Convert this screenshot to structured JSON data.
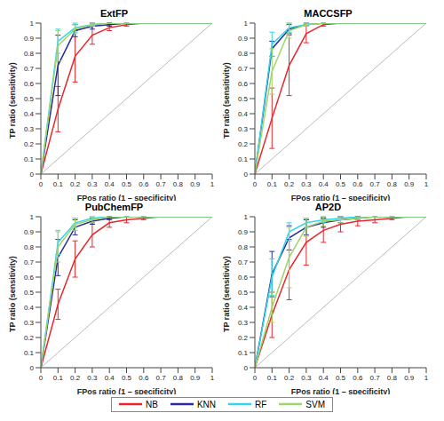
{
  "chart_data": [
    {
      "type": "line",
      "title": "ExtFP",
      "x_label": "FPos ratio (1 – specificity)",
      "y_label": "TP ratio (sensitivity)",
      "x": [
        0,
        0.1,
        0.2,
        0.3,
        0.4,
        0.5,
        0.6,
        0.7,
        0.8,
        0.9,
        1
      ],
      "xlim": [
        0,
        1
      ],
      "xticks": [
        0,
        0.1,
        0.2,
        0.3,
        0.4,
        0.5,
        0.6,
        0.7,
        0.8,
        0.9,
        1
      ],
      "ylim": [
        0,
        1
      ],
      "yticks": [
        0,
        0.1,
        0.2,
        0.3,
        0.4,
        0.5,
        0.6,
        0.7,
        0.8,
        0.9,
        1
      ],
      "legend": "bottom",
      "series": [
        {
          "name": "NB",
          "color": "#e8262b",
          "values": [
            0,
            0.43,
            0.78,
            0.92,
            0.97,
            0.99,
            1,
            1,
            1,
            1,
            1
          ],
          "errors": [
            0,
            0.15,
            0.17,
            0.06,
            0.02,
            0.01,
            0,
            0,
            0,
            0,
            0
          ]
        },
        {
          "name": "KNN",
          "color": "#2a2a9c",
          "values": [
            0,
            0.72,
            0.95,
            0.98,
            0.99,
            1,
            1,
            1,
            1,
            1,
            1
          ],
          "errors": [
            0,
            0.2,
            0.04,
            0.02,
            0.01,
            0,
            0,
            0,
            0,
            0,
            0
          ]
        },
        {
          "name": "RF",
          "color": "#33d6e8",
          "values": [
            0,
            0.88,
            0.97,
            0.99,
            1,
            1,
            1,
            1,
            1,
            1,
            1
          ],
          "errors": [
            0,
            0.08,
            0.03,
            0.01,
            0,
            0,
            0,
            0,
            0,
            0,
            0
          ]
        },
        {
          "name": "SVM",
          "color": "#9ed46a",
          "values": [
            0,
            0.85,
            0.96,
            0.99,
            1,
            1,
            1,
            1,
            1,
            1,
            1
          ],
          "errors": [
            0,
            0.1,
            0.03,
            0.01,
            0,
            0,
            0,
            0,
            0,
            0,
            0
          ]
        }
      ]
    },
    {
      "type": "line",
      "title": "MACCSFP",
      "x_label": "FPos ratio (1 – specificity)",
      "y_label": "TP ratio (sensitivity)",
      "x": [
        0,
        0.1,
        0.2,
        0.3,
        0.4,
        0.5,
        0.6,
        0.7,
        0.8,
        0.9,
        1
      ],
      "xlim": [
        0,
        1
      ],
      "xticks": [
        0,
        0.1,
        0.2,
        0.3,
        0.4,
        0.5,
        0.6,
        0.7,
        0.8,
        0.9,
        1
      ],
      "ylim": [
        0,
        1
      ],
      "yticks": [
        0,
        0.1,
        0.2,
        0.3,
        0.4,
        0.5,
        0.6,
        0.7,
        0.8,
        0.9,
        1
      ],
      "legend": "bottom",
      "series": [
        {
          "name": "NB",
          "color": "#e8262b",
          "values": [
            0,
            0.37,
            0.72,
            0.93,
            0.99,
            1,
            1,
            1,
            1,
            1,
            1
          ],
          "errors": [
            0,
            0.2,
            0.2,
            0.06,
            0.01,
            0,
            0,
            0,
            0,
            0,
            0
          ]
        },
        {
          "name": "KNN",
          "color": "#2a2a9c",
          "values": [
            0,
            0.83,
            0.96,
            0.99,
            1,
            1,
            1,
            1,
            1,
            1,
            1
          ],
          "errors": [
            0,
            0.05,
            0.03,
            0.01,
            0,
            0,
            0,
            0,
            0,
            0,
            0
          ]
        },
        {
          "name": "RF",
          "color": "#33d6e8",
          "values": [
            0,
            0.86,
            0.97,
            0.99,
            1,
            1,
            1,
            1,
            1,
            1,
            1
          ],
          "errors": [
            0,
            0.08,
            0.03,
            0.01,
            0,
            0,
            0,
            0,
            0,
            0,
            0
          ]
        },
        {
          "name": "SVM",
          "color": "#9ed46a",
          "values": [
            0,
            0.68,
            0.95,
            0.99,
            1,
            1,
            1,
            1,
            1,
            1,
            1
          ],
          "errors": [
            0,
            0.15,
            0.05,
            0.01,
            0,
            0,
            0,
            0,
            0,
            0,
            0
          ]
        }
      ]
    },
    {
      "type": "line",
      "title": "PubChemFP",
      "x_label": "FPos ratio (1 – specificity)",
      "y_label": "TP ratio (sensitivity)",
      "x": [
        0,
        0.1,
        0.2,
        0.3,
        0.4,
        0.5,
        0.6,
        0.7,
        0.8,
        0.9,
        1
      ],
      "xlim": [
        0,
        1
      ],
      "xticks": [
        0,
        0.1,
        0.2,
        0.3,
        0.4,
        0.5,
        0.6,
        0.7,
        0.8,
        0.9,
        1
      ],
      "ylim": [
        0,
        1
      ],
      "yticks": [
        0,
        0.1,
        0.2,
        0.3,
        0.4,
        0.5,
        0.6,
        0.7,
        0.8,
        0.9,
        1
      ],
      "legend": "bottom",
      "series": [
        {
          "name": "NB",
          "color": "#e8262b",
          "values": [
            0,
            0.42,
            0.72,
            0.88,
            0.96,
            0.98,
            0.99,
            1,
            1,
            1,
            1
          ],
          "errors": [
            0,
            0.1,
            0.12,
            0.08,
            0.03,
            0.02,
            0.01,
            0,
            0,
            0,
            0
          ]
        },
        {
          "name": "KNN",
          "color": "#2a2a9c",
          "values": [
            0,
            0.73,
            0.93,
            0.97,
            0.99,
            1,
            1,
            1,
            1,
            1,
            1
          ],
          "errors": [
            0,
            0.12,
            0.05,
            0.02,
            0.01,
            0,
            0,
            0,
            0,
            0,
            0
          ]
        },
        {
          "name": "RF",
          "color": "#33d6e8",
          "values": [
            0,
            0.83,
            0.96,
            0.99,
            1,
            1,
            1,
            1,
            1,
            1,
            1
          ],
          "errors": [
            0,
            0.08,
            0.03,
            0.01,
            0,
            0,
            0,
            0,
            0,
            0,
            0
          ]
        },
        {
          "name": "SVM",
          "color": "#9ed46a",
          "values": [
            0,
            0.8,
            0.95,
            0.98,
            1,
            1,
            1,
            1,
            1,
            1,
            1
          ],
          "errors": [
            0,
            0.1,
            0.04,
            0.02,
            0,
            0,
            0,
            0,
            0,
            0,
            0
          ]
        }
      ]
    },
    {
      "type": "line",
      "title": "AP2D",
      "x_label": "FPos ratio (1 – specificity)",
      "y_label": "TP ratio (sensitivity)",
      "x": [
        0,
        0.1,
        0.2,
        0.3,
        0.4,
        0.5,
        0.6,
        0.7,
        0.8,
        0.9,
        1
      ],
      "xlim": [
        0,
        1
      ],
      "xticks": [
        0,
        0.1,
        0.2,
        0.3,
        0.4,
        0.5,
        0.6,
        0.7,
        0.8,
        0.9,
        1
      ],
      "ylim": [
        0,
        1
      ],
      "yticks": [
        0,
        0.1,
        0.2,
        0.3,
        0.4,
        0.5,
        0.6,
        0.7,
        0.8,
        0.9,
        1
      ],
      "legend": "bottom",
      "series": [
        {
          "name": "NB",
          "color": "#e8262b",
          "values": [
            0,
            0.35,
            0.65,
            0.83,
            0.91,
            0.95,
            0.97,
            0.98,
            0.99,
            1,
            1
          ],
          "errors": [
            0,
            0.15,
            0.2,
            0.15,
            0.08,
            0.05,
            0.03,
            0.02,
            0.01,
            0,
            0
          ]
        },
        {
          "name": "KNN",
          "color": "#2a2a9c",
          "values": [
            0,
            0.62,
            0.86,
            0.93,
            0.96,
            0.98,
            0.99,
            1,
            1,
            1,
            1
          ],
          "errors": [
            0,
            0.15,
            0.08,
            0.05,
            0.03,
            0.02,
            0.01,
            0,
            0,
            0,
            0
          ]
        },
        {
          "name": "RF",
          "color": "#33d6e8",
          "values": [
            0,
            0.6,
            0.9,
            0.96,
            0.98,
            0.99,
            1,
            1,
            1,
            1,
            1
          ],
          "errors": [
            0,
            0.12,
            0.06,
            0.03,
            0.02,
            0.01,
            0,
            0,
            0,
            0,
            0
          ]
        },
        {
          "name": "SVM",
          "color": "#9ed46a",
          "values": [
            0,
            0.4,
            0.73,
            0.93,
            0.97,
            0.98,
            0.99,
            1,
            1,
            1,
            1
          ],
          "errors": [
            0,
            0.1,
            0.2,
            0.06,
            0.03,
            0.02,
            0.01,
            0,
            0,
            0,
            0
          ]
        }
      ]
    }
  ]
}
